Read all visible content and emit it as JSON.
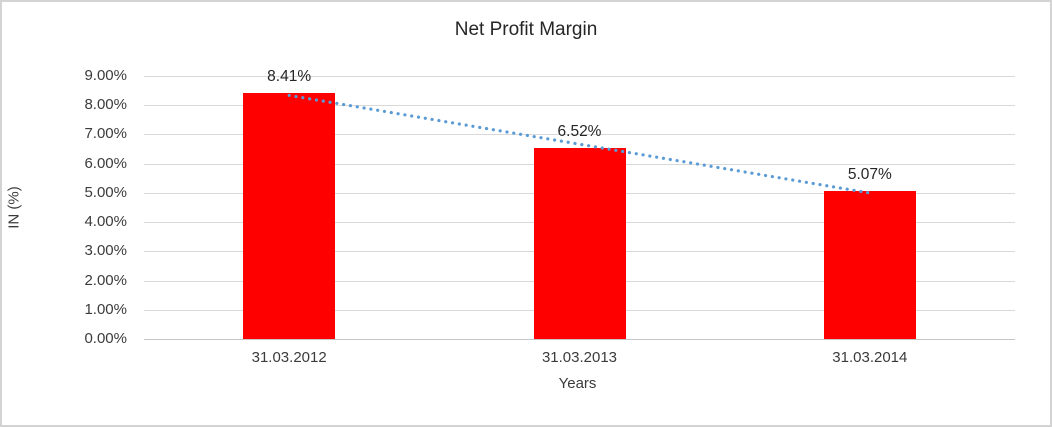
{
  "window": {
    "background": "#ffffff",
    "border_color": "#d3d3d3"
  },
  "chart_data": {
    "type": "bar",
    "title": "Net Profit Margin",
    "categories": [
      "31.03.2012",
      "31.03.2013",
      "31.03.2014"
    ],
    "values": [
      8.41,
      6.52,
      5.07
    ],
    "data_labels": [
      "8.41%",
      "6.52%",
      "5.07%"
    ],
    "xlabel": "Years",
    "ylabel": "IN (%)",
    "ylim": [
      0,
      9
    ],
    "ytick_labels": [
      "0.00%",
      "1.00%",
      "2.00%",
      "3.00%",
      "4.00%",
      "5.00%",
      "6.00%",
      "7.00%",
      "8.00%",
      "9.00%"
    ],
    "grid": true,
    "legend": "none",
    "bar_color": "#ff0000",
    "gridline_color": "#d9d9d9",
    "axisline_color": "#c6c6c6",
    "text_color": "#3b3b3b",
    "trendline": {
      "type": "linear",
      "style": "dotted",
      "color": "#5b9bd5"
    }
  }
}
